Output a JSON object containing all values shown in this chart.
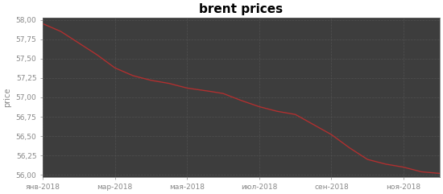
{
  "title": "brent prices",
  "ylabel": "price",
  "background_color": "#ffffff",
  "plot_bg_color": "#3d3d3d",
  "title_color": "#000000",
  "label_color": "#888888",
  "tick_color": "#888888",
  "grid_color": "#555555",
  "line_color": "#b03030",
  "ylim": [
    55.97,
    58.03
  ],
  "yticks": [
    56.0,
    56.25,
    56.5,
    56.75,
    57.0,
    57.25,
    57.5,
    57.75,
    58.0
  ],
  "xtick_labels": [
    "янв-2018",
    "мар-2018",
    "мая-2018",
    "июл-2018",
    "сен-2018",
    "ноя-2018"
  ],
  "x_values": [
    0,
    0.5,
    1,
    1.5,
    2,
    2.5,
    3,
    3.5,
    4,
    4.3,
    4.6,
    5,
    5.5,
    6,
    6.5,
    7,
    7.5,
    8,
    8.5,
    9,
    9.5,
    10,
    10.5,
    11
  ],
  "y_values": [
    57.95,
    57.85,
    57.7,
    57.55,
    57.38,
    57.28,
    57.22,
    57.18,
    57.12,
    57.1,
    57.08,
    57.05,
    56.96,
    56.88,
    56.82,
    56.78,
    56.65,
    56.52,
    56.35,
    56.2,
    56.14,
    56.1,
    56.04,
    56.02
  ],
  "xtick_positions": [
    0,
    2,
    4,
    6,
    8,
    10
  ],
  "line_width": 1.0,
  "title_fontsize": 11,
  "tick_fontsize": 6.5,
  "ylabel_fontsize": 7
}
